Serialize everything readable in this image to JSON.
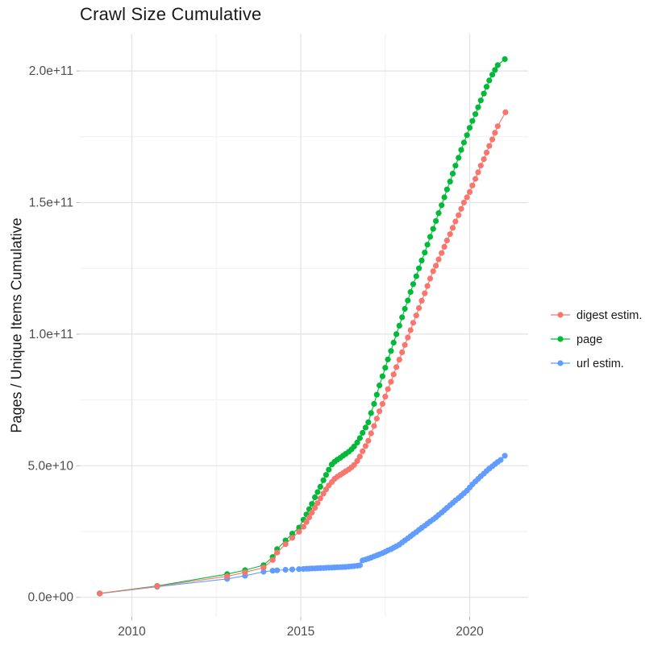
{
  "title": "Crawl Size Cumulative",
  "y_axis": {
    "title": "Pages / Unique Items Cumulative",
    "tick_labels": [
      "0.0e+00",
      "5.0e+10",
      "1.0e+11",
      "1.5e+11",
      "2.0e+11"
    ],
    "tick_values_billions": [
      0,
      50,
      100,
      150,
      200
    ],
    "minor_gridline_values_billions": [
      25,
      75,
      125,
      175
    ]
  },
  "x_axis": {
    "tick_labels": [
      "2010",
      "2015",
      "2020"
    ],
    "tick_values": [
      2010,
      2015,
      2020
    ],
    "minor_gridline_values": [
      2012.5,
      2017.5
    ]
  },
  "legend": {
    "items": [
      {
        "label": "digest estim.",
        "color": "#F8766D"
      },
      {
        "label": "page",
        "color": "#00BA38"
      },
      {
        "label": "url estim.",
        "color": "#619CFF"
      }
    ]
  },
  "colors": {
    "background": "#FFFFFF",
    "grid_major": "#E2E2E2",
    "grid_minor": "#F0F0F0",
    "tick_mark": "#B8B8B8",
    "axis_text": "#4D4D4D",
    "title_text": "#1A1A1A",
    "series_digest": "#F8766D",
    "series_page": "#00BA38",
    "series_url": "#619CFF"
  },
  "chart_data": {
    "type": "line",
    "title": "Crawl Size Cumulative",
    "xlabel": "",
    "ylabel": "Pages / Unique Items Cumulative",
    "value_scale": 1000000000,
    "x_range_years": [
      2009.05,
      2021.06
    ],
    "y_range_billions": [
      0,
      205
    ],
    "grid": true,
    "legend_position": "right",
    "series": [
      {
        "name": "digest estim.",
        "color": "#F8766D",
        "points": [
          [
            2009.05,
            1.45
          ],
          [
            2010.75,
            4.2
          ],
          [
            2012.82,
            8.0
          ],
          [
            2013.35,
            9.5
          ],
          [
            2013.9,
            11.3
          ],
          [
            2014.17,
            14.2
          ],
          [
            2014.3,
            17.0
          ],
          [
            2014.55,
            20.2
          ],
          [
            2014.75,
            22.6
          ],
          [
            2014.95,
            24.9
          ],
          [
            2015.08,
            26.8
          ],
          [
            2015.17,
            28.6
          ],
          [
            2015.25,
            30.4
          ],
          [
            2015.33,
            32.2
          ],
          [
            2015.42,
            34.0
          ],
          [
            2015.5,
            35.8
          ],
          [
            2015.58,
            37.6
          ],
          [
            2015.67,
            39.4
          ],
          [
            2015.75,
            41.0
          ],
          [
            2015.83,
            42.5
          ],
          [
            2015.92,
            43.8
          ],
          [
            2016.0,
            45.0
          ],
          [
            2016.08,
            45.8
          ],
          [
            2016.17,
            46.5
          ],
          [
            2016.25,
            47.2
          ],
          [
            2016.33,
            47.9
          ],
          [
            2016.42,
            48.6
          ],
          [
            2016.5,
            49.4
          ],
          [
            2016.58,
            50.3
          ],
          [
            2016.67,
            51.8
          ],
          [
            2016.75,
            53.5
          ],
          [
            2016.83,
            55.5
          ],
          [
            2016.92,
            57.5
          ],
          [
            2017.0,
            59.5
          ],
          [
            2017.08,
            62.3
          ],
          [
            2017.17,
            65.1
          ],
          [
            2017.25,
            67.9
          ],
          [
            2017.33,
            70.7
          ],
          [
            2017.42,
            73.5
          ],
          [
            2017.5,
            76.3
          ],
          [
            2017.58,
            79.1
          ],
          [
            2017.67,
            81.9
          ],
          [
            2017.75,
            84.7
          ],
          [
            2017.83,
            87.5
          ],
          [
            2017.92,
            90.3
          ],
          [
            2018.0,
            93.1
          ],
          [
            2018.08,
            95.9
          ],
          [
            2018.17,
            98.7
          ],
          [
            2018.25,
            101.5
          ],
          [
            2018.33,
            104.3
          ],
          [
            2018.42,
            107.1
          ],
          [
            2018.5,
            109.9
          ],
          [
            2018.58,
            112.7
          ],
          [
            2018.67,
            115.5
          ],
          [
            2018.75,
            118.3
          ],
          [
            2018.83,
            121.1
          ],
          [
            2018.92,
            123.9
          ],
          [
            2019.0,
            126.0
          ],
          [
            2019.08,
            128.4
          ],
          [
            2019.17,
            130.8
          ],
          [
            2019.25,
            133.2
          ],
          [
            2019.33,
            135.6
          ],
          [
            2019.42,
            138.0
          ],
          [
            2019.5,
            140.4
          ],
          [
            2019.58,
            142.8
          ],
          [
            2019.67,
            145.2
          ],
          [
            2019.75,
            147.6
          ],
          [
            2019.83,
            150.0
          ],
          [
            2019.92,
            152.0
          ],
          [
            2020.0,
            154.0
          ],
          [
            2020.08,
            156.5
          ],
          [
            2020.17,
            159.0
          ],
          [
            2020.25,
            161.5
          ],
          [
            2020.33,
            164.0
          ],
          [
            2020.42,
            166.5
          ],
          [
            2020.5,
            169.0
          ],
          [
            2020.58,
            171.5
          ],
          [
            2020.67,
            174.0
          ],
          [
            2020.75,
            176.5
          ],
          [
            2020.83,
            179.0
          ],
          [
            2021.06,
            184.3
          ]
        ]
      },
      {
        "name": "page",
        "color": "#00BA38",
        "points": [
          [
            2009.05,
            1.5
          ],
          [
            2010.75,
            4.3
          ],
          [
            2012.82,
            8.8
          ],
          [
            2013.35,
            10.3
          ],
          [
            2013.9,
            12.2
          ],
          [
            2014.17,
            15.3
          ],
          [
            2014.3,
            18.3
          ],
          [
            2014.55,
            21.6
          ],
          [
            2014.75,
            24.2
          ],
          [
            2014.95,
            26.5
          ],
          [
            2015.08,
            29.5
          ],
          [
            2015.17,
            31.5
          ],
          [
            2015.25,
            33.5
          ],
          [
            2015.33,
            35.5
          ],
          [
            2015.42,
            38.0
          ],
          [
            2015.5,
            40.0
          ],
          [
            2015.58,
            42.0
          ],
          [
            2015.67,
            44.5
          ],
          [
            2015.75,
            46.5
          ],
          [
            2015.83,
            48.5
          ],
          [
            2015.92,
            50.5
          ],
          [
            2016.0,
            51.5
          ],
          [
            2016.08,
            52.3
          ],
          [
            2016.17,
            53.0
          ],
          [
            2016.25,
            53.8
          ],
          [
            2016.33,
            54.5
          ],
          [
            2016.42,
            55.3
          ],
          [
            2016.5,
            56.2
          ],
          [
            2016.58,
            57.3
          ],
          [
            2016.67,
            58.8
          ],
          [
            2016.75,
            60.5
          ],
          [
            2016.83,
            62.5
          ],
          [
            2016.92,
            64.5
          ],
          [
            2017.0,
            66.5
          ],
          [
            2017.08,
            70.0
          ],
          [
            2017.17,
            73.5
          ],
          [
            2017.25,
            77.0
          ],
          [
            2017.33,
            80.5
          ],
          [
            2017.42,
            84.0
          ],
          [
            2017.5,
            87.2
          ],
          [
            2017.58,
            90.4
          ],
          [
            2017.67,
            93.6
          ],
          [
            2017.75,
            96.8
          ],
          [
            2017.83,
            100.0
          ],
          [
            2017.92,
            103.2
          ],
          [
            2018.0,
            106.4
          ],
          [
            2018.08,
            109.6
          ],
          [
            2018.17,
            112.8
          ],
          [
            2018.25,
            116.0
          ],
          [
            2018.33,
            119.0
          ],
          [
            2018.42,
            122.0
          ],
          [
            2018.5,
            125.0
          ],
          [
            2018.58,
            128.0
          ],
          [
            2018.67,
            131.0
          ],
          [
            2018.75,
            134.0
          ],
          [
            2018.83,
            137.0
          ],
          [
            2018.92,
            140.0
          ],
          [
            2019.0,
            143.0
          ],
          [
            2019.08,
            146.0
          ],
          [
            2019.17,
            149.0
          ],
          [
            2019.25,
            152.0
          ],
          [
            2019.33,
            155.0
          ],
          [
            2019.42,
            158.0
          ],
          [
            2019.5,
            161.0
          ],
          [
            2019.58,
            164.0
          ],
          [
            2019.67,
            167.0
          ],
          [
            2019.75,
            170.0
          ],
          [
            2019.83,
            172.8
          ],
          [
            2019.92,
            175.6
          ],
          [
            2020.0,
            178.4
          ],
          [
            2020.08,
            181.0
          ],
          [
            2020.17,
            183.6
          ],
          [
            2020.25,
            186.2
          ],
          [
            2020.33,
            188.8
          ],
          [
            2020.42,
            191.4
          ],
          [
            2020.5,
            194.0
          ],
          [
            2020.58,
            196.4
          ],
          [
            2020.67,
            198.6
          ],
          [
            2020.75,
            200.4
          ],
          [
            2020.83,
            202.2
          ],
          [
            2021.04,
            204.5
          ]
        ]
      },
      {
        "name": "url estim.",
        "color": "#619CFF",
        "points": [
          [
            2009.05,
            1.4
          ],
          [
            2010.75,
            4.0
          ],
          [
            2012.82,
            7.0
          ],
          [
            2013.35,
            8.2
          ],
          [
            2013.9,
            9.7
          ],
          [
            2014.17,
            10.1
          ],
          [
            2014.3,
            10.25
          ],
          [
            2014.55,
            10.45
          ],
          [
            2014.75,
            10.6
          ],
          [
            2014.95,
            10.7
          ],
          [
            2015.08,
            10.78
          ],
          [
            2015.17,
            10.85
          ],
          [
            2015.25,
            10.9
          ],
          [
            2015.33,
            10.95
          ],
          [
            2015.42,
            11.0
          ],
          [
            2015.5,
            11.05
          ],
          [
            2015.58,
            11.1
          ],
          [
            2015.67,
            11.15
          ],
          [
            2015.75,
            11.2
          ],
          [
            2015.83,
            11.25
          ],
          [
            2015.92,
            11.3
          ],
          [
            2016.0,
            11.35
          ],
          [
            2016.08,
            11.4
          ],
          [
            2016.17,
            11.45
          ],
          [
            2016.25,
            11.5
          ],
          [
            2016.33,
            11.55
          ],
          [
            2016.42,
            11.65
          ],
          [
            2016.5,
            11.75
          ],
          [
            2016.58,
            11.85
          ],
          [
            2016.67,
            12.0
          ],
          [
            2016.75,
            12.15
          ],
          [
            2016.83,
            14.0
          ],
          [
            2016.92,
            14.35
          ],
          [
            2017.0,
            14.7
          ],
          [
            2017.08,
            15.1
          ],
          [
            2017.17,
            15.5
          ],
          [
            2017.25,
            15.9
          ],
          [
            2017.33,
            16.35
          ],
          [
            2017.42,
            16.8
          ],
          [
            2017.5,
            17.3
          ],
          [
            2017.58,
            17.8
          ],
          [
            2017.67,
            18.3
          ],
          [
            2017.75,
            18.85
          ],
          [
            2017.83,
            19.4
          ],
          [
            2017.92,
            20.0
          ],
          [
            2018.0,
            20.8
          ],
          [
            2018.08,
            21.6
          ],
          [
            2018.17,
            22.4
          ],
          [
            2018.25,
            23.2
          ],
          [
            2018.33,
            24.0
          ],
          [
            2018.42,
            24.8
          ],
          [
            2018.5,
            25.6
          ],
          [
            2018.58,
            26.4
          ],
          [
            2018.67,
            27.2
          ],
          [
            2018.75,
            28.0
          ],
          [
            2018.83,
            28.8
          ],
          [
            2018.92,
            29.6
          ],
          [
            2019.0,
            30.4
          ],
          [
            2019.08,
            31.3
          ],
          [
            2019.17,
            32.2
          ],
          [
            2019.25,
            33.1
          ],
          [
            2019.33,
            34.0
          ],
          [
            2019.42,
            35.0
          ],
          [
            2019.5,
            35.9
          ],
          [
            2019.58,
            36.8
          ],
          [
            2019.67,
            37.7
          ],
          [
            2019.75,
            38.6
          ],
          [
            2019.83,
            39.5
          ],
          [
            2019.92,
            40.5
          ],
          [
            2020.0,
            41.7
          ],
          [
            2020.08,
            42.9
          ],
          [
            2020.17,
            44.0
          ],
          [
            2020.25,
            45.0
          ],
          [
            2020.33,
            46.0
          ],
          [
            2020.42,
            47.0
          ],
          [
            2020.5,
            48.0
          ],
          [
            2020.58,
            48.9
          ],
          [
            2020.67,
            49.8
          ],
          [
            2020.75,
            50.6
          ],
          [
            2020.83,
            51.4
          ],
          [
            2020.92,
            52.2
          ],
          [
            2021.04,
            53.8
          ]
        ]
      }
    ]
  }
}
